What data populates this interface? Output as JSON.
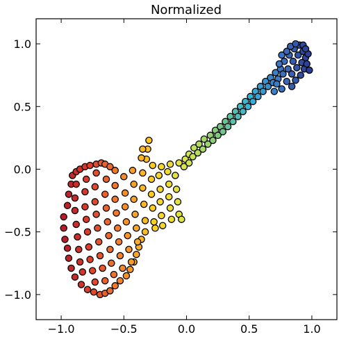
{
  "chart_data": {
    "type": "scatter",
    "title": "Normalized",
    "xlabel": "",
    "ylabel": "",
    "xlim": [
      -1.2,
      1.2
    ],
    "ylim": [
      -1.2,
      1.2
    ],
    "xticks": [
      -1.0,
      -0.5,
      0.0,
      0.5,
      1.0
    ],
    "xtick_labels": [
      "−1.0",
      "−0.5",
      "0.0",
      "0.5",
      "1.0"
    ],
    "yticks": [
      -1.0,
      -0.5,
      0.0,
      0.5,
      1.0
    ],
    "ytick_labels": [
      "−1.0",
      "−0.5",
      "0.0",
      "0.5",
      "1.0"
    ],
    "grid": false,
    "legend": "none",
    "colormap": "spectral-like (red → orange → yellow → green → cyan → blue), by x position",
    "color_stops": [
      "#b2182b",
      "#e0442c",
      "#f58a2c",
      "#fdd31f",
      "#d8e84a",
      "#7ec97f",
      "#35b5d8",
      "#3b75c4",
      "#2b3a8f"
    ],
    "marker_edge_color": "#000000",
    "points": [
      [
        -0.98,
        -0.38
      ],
      [
        -0.98,
        -0.47
      ],
      [
        -0.97,
        -0.56
      ],
      [
        -0.95,
        -0.63
      ],
      [
        -0.95,
        -0.29
      ],
      [
        -0.94,
        -0.2
      ],
      [
        -0.92,
        -0.12
      ],
      [
        -0.91,
        -0.05
      ],
      [
        -0.94,
        -0.71
      ],
      [
        -0.92,
        -0.79
      ],
      [
        -0.89,
        -0.86
      ],
      [
        -0.88,
        -0.02
      ],
      [
        -0.85,
        0.0
      ],
      [
        -0.81,
        0.02
      ],
      [
        -0.77,
        0.03
      ],
      [
        -0.72,
        0.04
      ],
      [
        -0.68,
        0.05
      ],
      [
        -0.65,
        0.04
      ],
      [
        -0.61,
        0.02
      ],
      [
        -0.84,
        -0.92
      ],
      [
        -0.79,
        -0.96
      ],
      [
        -0.74,
        -0.98
      ],
      [
        -0.69,
        -1.0
      ],
      [
        -0.65,
        -0.99
      ],
      [
        -0.61,
        -0.97
      ],
      [
        -0.57,
        -0.93
      ],
      [
        -0.53,
        -0.89
      ],
      [
        -0.48,
        -0.85
      ],
      [
        -0.45,
        -0.8
      ],
      [
        -0.42,
        -0.74
      ],
      [
        -0.4,
        -0.68
      ],
      [
        -0.38,
        -0.62
      ],
      [
        -0.36,
        -0.56
      ],
      [
        -0.88,
        -0.12
      ],
      [
        -0.89,
        -0.23
      ],
      [
        -0.89,
        -0.33
      ],
      [
        -0.88,
        -0.44
      ],
      [
        -0.87,
        -0.54
      ],
      [
        -0.86,
        -0.64
      ],
      [
        -0.85,
        -0.74
      ],
      [
        -0.83,
        -0.82
      ],
      [
        -0.8,
        -0.08
      ],
      [
        -0.81,
        -0.18
      ],
      [
        -0.81,
        -0.3
      ],
      [
        -0.8,
        -0.4
      ],
      [
        -0.79,
        -0.5
      ],
      [
        -0.78,
        -0.62
      ],
      [
        -0.77,
        -0.72
      ],
      [
        -0.75,
        -0.81
      ],
      [
        -0.73,
        -0.9
      ],
      [
        -0.72,
        -0.03
      ],
      [
        -0.73,
        -0.14
      ],
      [
        -0.73,
        -0.26
      ],
      [
        -0.72,
        -0.36
      ],
      [
        -0.71,
        -0.47
      ],
      [
        -0.7,
        -0.58
      ],
      [
        -0.69,
        -0.69
      ],
      [
        -0.67,
        -0.79
      ],
      [
        -0.65,
        -0.89
      ],
      [
        -0.64,
        -0.08
      ],
      [
        -0.65,
        -0.2
      ],
      [
        -0.64,
        -0.31
      ],
      [
        -0.63,
        -0.42
      ],
      [
        -0.62,
        -0.53
      ],
      [
        -0.61,
        -0.64
      ],
      [
        -0.6,
        -0.75
      ],
      [
        -0.58,
        -0.84
      ],
      [
        -0.57,
        -0.01
      ],
      [
        -0.57,
        -0.13
      ],
      [
        -0.57,
        -0.24
      ],
      [
        -0.56,
        -0.35
      ],
      [
        -0.55,
        -0.47
      ],
      [
        -0.54,
        -0.58
      ],
      [
        -0.53,
        -0.69
      ],
      [
        -0.51,
        -0.79
      ],
      [
        -0.5,
        -0.06
      ],
      [
        -0.49,
        -0.19
      ],
      [
        -0.49,
        -0.3
      ],
      [
        -0.48,
        -0.42
      ],
      [
        -0.47,
        -0.53
      ],
      [
        -0.46,
        -0.64
      ],
      [
        -0.44,
        -0.74
      ],
      [
        -0.43,
        -0.01
      ],
      [
        -0.42,
        -0.12
      ],
      [
        -0.42,
        -0.24
      ],
      [
        -0.41,
        -0.36
      ],
      [
        -0.4,
        -0.47
      ],
      [
        -0.39,
        -0.58
      ],
      [
        -0.35,
        -0.03
      ],
      [
        -0.35,
        -0.15
      ],
      [
        -0.34,
        -0.28
      ],
      [
        -0.33,
        -0.41
      ],
      [
        -0.33,
        -0.5
      ],
      [
        -0.32,
        0.08
      ],
      [
        -0.31,
        0.16
      ],
      [
        -0.3,
        0.23
      ],
      [
        -0.36,
        0.09
      ],
      [
        -0.35,
        0.16
      ],
      [
        -0.28,
        -0.08
      ],
      [
        -0.28,
        -0.2
      ],
      [
        -0.27,
        -0.31
      ],
      [
        -0.26,
        -0.42
      ],
      [
        -0.25,
        -0.47
      ],
      [
        -0.27,
        0.03
      ],
      [
        -0.22,
        -0.05
      ],
      [
        -0.21,
        -0.16
      ],
      [
        -0.21,
        -0.26
      ],
      [
        -0.2,
        -0.37
      ],
      [
        -0.19,
        -0.45
      ],
      [
        -0.2,
        0.02
      ],
      [
        -0.15,
        -0.02
      ],
      [
        -0.14,
        -0.12
      ],
      [
        -0.14,
        -0.22
      ],
      [
        -0.13,
        -0.31
      ],
      [
        -0.12,
        -0.4
      ],
      [
        -0.13,
        0.04
      ],
      [
        -0.09,
        -0.05
      ],
      [
        -0.08,
        -0.16
      ],
      [
        -0.07,
        -0.26
      ],
      [
        -0.06,
        -0.36
      ],
      [
        -0.04,
        -0.4
      ],
      [
        -0.06,
        0.05
      ],
      [
        -0.02,
        0.02
      ],
      [
        -0.01,
        0.08
      ],
      [
        0.02,
        0.05
      ],
      [
        0.02,
        0.12
      ],
      [
        0.05,
        0.1
      ],
      [
        0.06,
        0.17
      ],
      [
        0.09,
        0.13
      ],
      [
        0.1,
        0.2
      ],
      [
        0.13,
        0.16
      ],
      [
        0.14,
        0.24
      ],
      [
        0.17,
        0.2
      ],
      [
        0.19,
        0.27
      ],
      [
        0.21,
        0.23
      ],
      [
        0.23,
        0.31
      ],
      [
        0.25,
        0.27
      ],
      [
        0.27,
        0.34
      ],
      [
        0.29,
        0.3
      ],
      [
        0.31,
        0.38
      ],
      [
        0.33,
        0.34
      ],
      [
        0.35,
        0.42
      ],
      [
        0.37,
        0.38
      ],
      [
        0.39,
        0.46
      ],
      [
        0.41,
        0.42
      ],
      [
        0.43,
        0.5
      ],
      [
        0.45,
        0.46
      ],
      [
        0.47,
        0.54
      ],
      [
        0.49,
        0.5
      ],
      [
        0.51,
        0.58
      ],
      [
        0.53,
        0.54
      ],
      [
        0.55,
        0.62
      ],
      [
        0.57,
        0.58
      ],
      [
        0.59,
        0.66
      ],
      [
        0.61,
        0.62
      ],
      [
        0.63,
        0.7
      ],
      [
        0.65,
        0.66
      ],
      [
        0.67,
        0.73
      ],
      [
        0.69,
        0.69
      ],
      [
        0.71,
        0.77
      ],
      [
        0.73,
        0.72
      ],
      [
        0.75,
        0.8
      ],
      [
        0.77,
        0.76
      ],
      [
        0.78,
        0.86
      ],
      [
        0.8,
        0.7
      ],
      [
        0.81,
        0.8
      ],
      [
        0.82,
        0.91
      ],
      [
        0.84,
        0.66
      ],
      [
        0.84,
        0.76
      ],
      [
        0.85,
        0.86
      ],
      [
        0.86,
        0.96
      ],
      [
        0.87,
        0.71
      ],
      [
        0.88,
        0.81
      ],
      [
        0.89,
        0.91
      ],
      [
        0.9,
        0.99
      ],
      [
        0.91,
        0.75
      ],
      [
        0.92,
        0.85
      ],
      [
        0.93,
        0.94
      ],
      [
        0.94,
        0.8
      ],
      [
        0.95,
        0.89
      ],
      [
        0.96,
        0.84
      ],
      [
        0.97,
        0.92
      ],
      [
        0.98,
        0.79
      ],
      [
        0.76,
        0.91
      ],
      [
        0.8,
        0.94
      ],
      [
        0.74,
        0.84
      ],
      [
        0.72,
        0.68
      ],
      [
        0.76,
        0.64
      ],
      [
        0.7,
        0.62
      ],
      [
        0.83,
        0.98
      ],
      [
        0.87,
        1.0
      ],
      [
        0.93,
        0.99
      ],
      [
        0.95,
        0.96
      ]
    ]
  }
}
